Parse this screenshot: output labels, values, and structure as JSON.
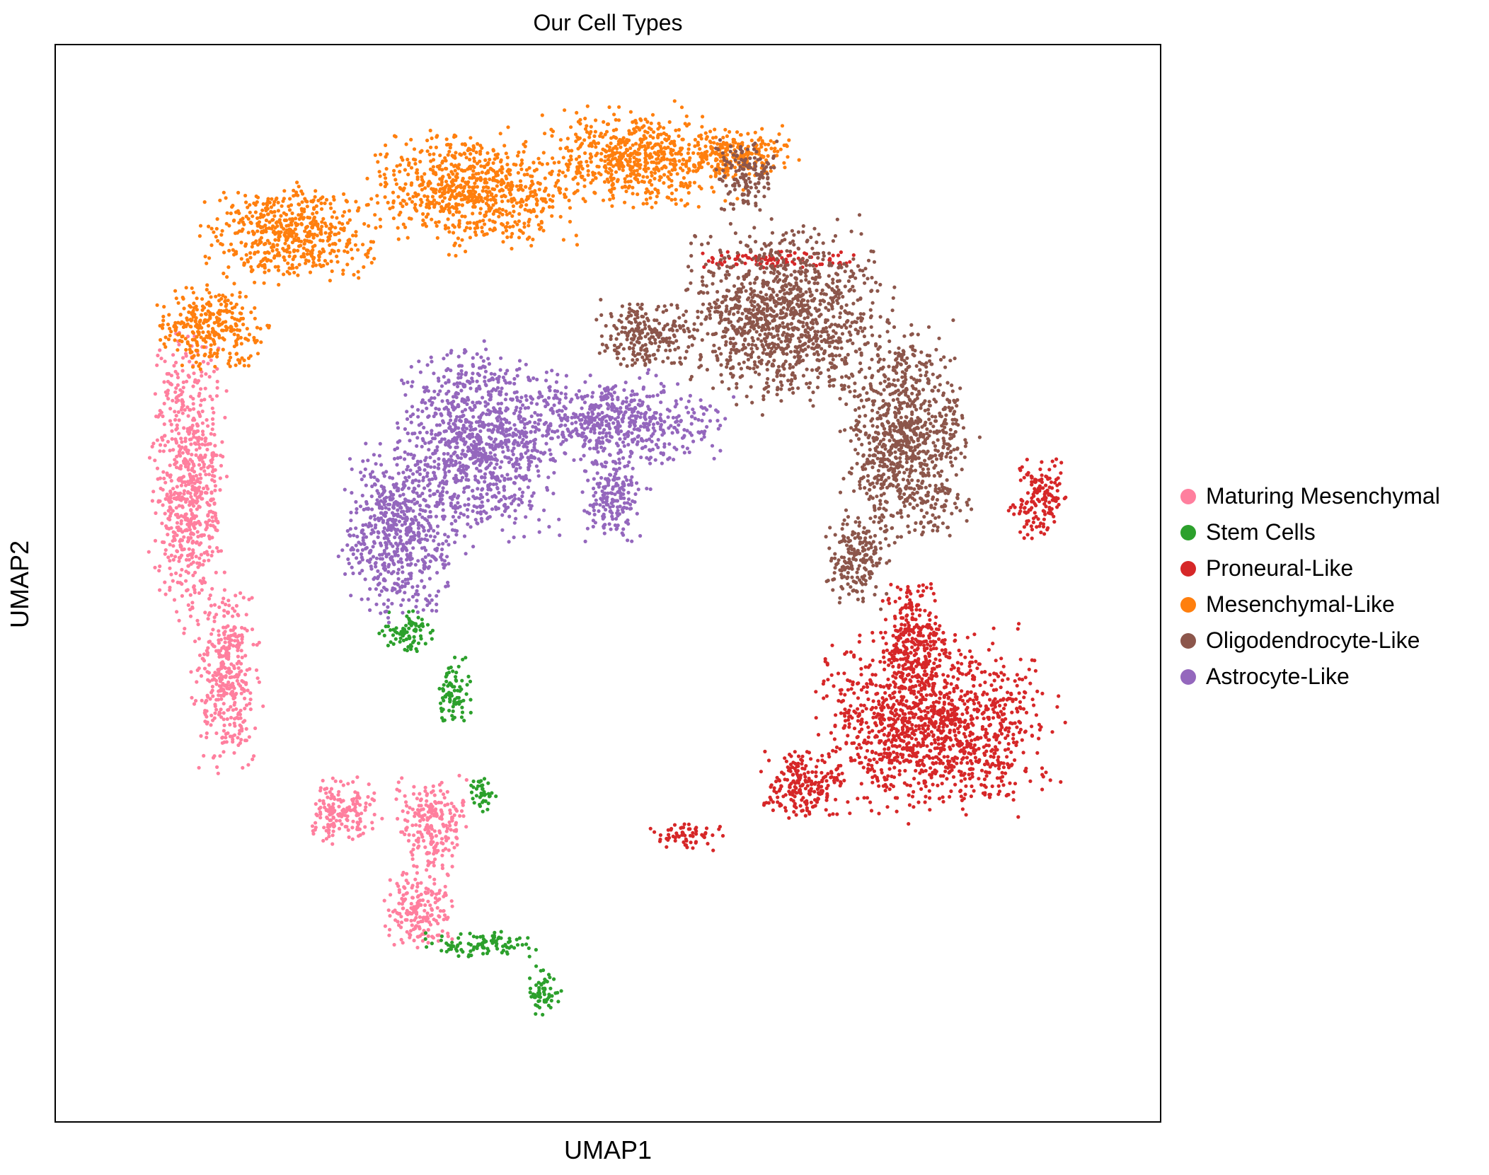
{
  "chart_data": {
    "type": "scatter",
    "title": "Our Cell Types",
    "xlabel": "UMAP1",
    "ylabel": "UMAP2",
    "xlim": [
      0,
      1
    ],
    "ylim": [
      0,
      1
    ],
    "ticks": "none",
    "grid": false,
    "legend_position": "right",
    "series": [
      {
        "name": "Maturing Mesenchymal",
        "color": "#ff7f9e",
        "regions": [
          [
            0.08,
            0.43,
            0.16,
            0.76
          ],
          [
            0.12,
            0.31,
            0.19,
            0.52
          ],
          [
            0.22,
            0.25,
            0.3,
            0.33
          ],
          [
            0.3,
            0.22,
            0.38,
            0.33
          ],
          [
            0.29,
            0.15,
            0.37,
            0.24
          ]
        ]
      },
      {
        "name": "Stem Cells",
        "color": "#2ca02c",
        "regions": [
          [
            0.29,
            0.43,
            0.35,
            0.48
          ],
          [
            0.34,
            0.36,
            0.38,
            0.44
          ],
          [
            0.37,
            0.28,
            0.4,
            0.33
          ],
          [
            0.32,
            0.15,
            0.45,
            0.18
          ],
          [
            0.42,
            0.09,
            0.46,
            0.15
          ]
        ]
      },
      {
        "name": "Proneural-Like",
        "color": "#d62728",
        "regions": [
          [
            0.67,
            0.27,
            0.92,
            0.47
          ],
          [
            0.74,
            0.38,
            0.81,
            0.52
          ],
          [
            0.63,
            0.27,
            0.73,
            0.35
          ],
          [
            0.53,
            0.25,
            0.61,
            0.28
          ],
          [
            0.86,
            0.53,
            0.92,
            0.63
          ],
          [
            0.56,
            0.79,
            0.75,
            0.81
          ]
        ]
      },
      {
        "name": "Mesenchymal-Like",
        "color": "#ff7f0e",
        "regions": [
          [
            0.08,
            0.69,
            0.2,
            0.79
          ],
          [
            0.12,
            0.77,
            0.31,
            0.88
          ],
          [
            0.27,
            0.8,
            0.49,
            0.93
          ],
          [
            0.42,
            0.84,
            0.64,
            0.95
          ],
          [
            0.56,
            0.87,
            0.68,
            0.93
          ]
        ]
      },
      {
        "name": "Oligodendrocyte-Like",
        "color": "#8c564b",
        "regions": [
          [
            0.59,
            0.84,
            0.66,
            0.92
          ],
          [
            0.55,
            0.65,
            0.77,
            0.85
          ],
          [
            0.7,
            0.51,
            0.84,
            0.76
          ],
          [
            0.48,
            0.69,
            0.59,
            0.77
          ],
          [
            0.69,
            0.47,
            0.76,
            0.57
          ]
        ]
      },
      {
        "name": "Astrocyte-Like",
        "color": "#9467bd",
        "regions": [
          [
            0.25,
            0.45,
            0.37,
            0.65
          ],
          [
            0.3,
            0.52,
            0.47,
            0.74
          ],
          [
            0.39,
            0.6,
            0.62,
            0.7
          ],
          [
            0.47,
            0.53,
            0.54,
            0.63
          ]
        ]
      }
    ]
  }
}
